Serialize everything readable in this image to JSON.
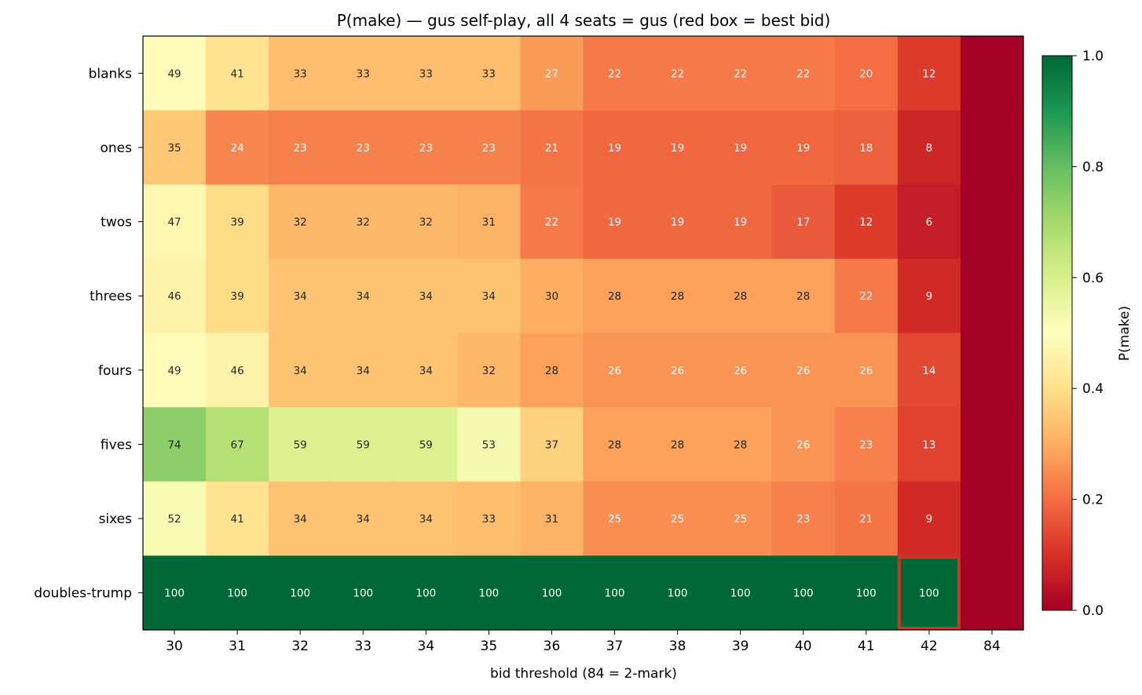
{
  "chart_data": {
    "type": "heatmap",
    "title": "P(make) — gus self-play, all 4 seats = gus  (red box = best bid)",
    "xlabel": "bid threshold (84 = 2-mark)",
    "ylabel": "",
    "x_categories": [
      "30",
      "31",
      "32",
      "33",
      "34",
      "35",
      "36",
      "37",
      "38",
      "39",
      "40",
      "41",
      "42",
      "84"
    ],
    "y_categories": [
      "blanks",
      "ones",
      "twos",
      "threes",
      "fours",
      "fives",
      "sixes",
      "doubles-trump"
    ],
    "values": [
      [
        49,
        41,
        33,
        33,
        33,
        33,
        27,
        22,
        22,
        22,
        22,
        20,
        12,
        0
      ],
      [
        35,
        24,
        23,
        23,
        23,
        23,
        21,
        19,
        19,
        19,
        19,
        18,
        8,
        0
      ],
      [
        47,
        39,
        32,
        32,
        32,
        31,
        22,
        19,
        19,
        19,
        17,
        12,
        6,
        0
      ],
      [
        46,
        39,
        34,
        34,
        34,
        34,
        30,
        28,
        28,
        28,
        28,
        22,
        9,
        0
      ],
      [
        49,
        46,
        34,
        34,
        34,
        32,
        28,
        26,
        26,
        26,
        26,
        26,
        14,
        0
      ],
      [
        74,
        67,
        59,
        59,
        59,
        53,
        37,
        28,
        28,
        28,
        26,
        23,
        13,
        0
      ],
      [
        52,
        41,
        34,
        34,
        34,
        33,
        31,
        25,
        25,
        25,
        23,
        21,
        9,
        0
      ],
      [
        100,
        100,
        100,
        100,
        100,
        100,
        100,
        100,
        100,
        100,
        100,
        100,
        100,
        0
      ]
    ],
    "value_labels_hidden_for_column": "84",
    "best_bid": {
      "row": "doubles-trump",
      "col": "42"
    },
    "colormap": "RdYlGn",
    "colorbar": {
      "label": "P(make)",
      "range": [
        0,
        1
      ],
      "ticks": [
        "0.0",
        "0.2",
        "0.4",
        "0.6",
        "0.8",
        "1.0"
      ]
    },
    "highlight_color": "#d73027"
  }
}
